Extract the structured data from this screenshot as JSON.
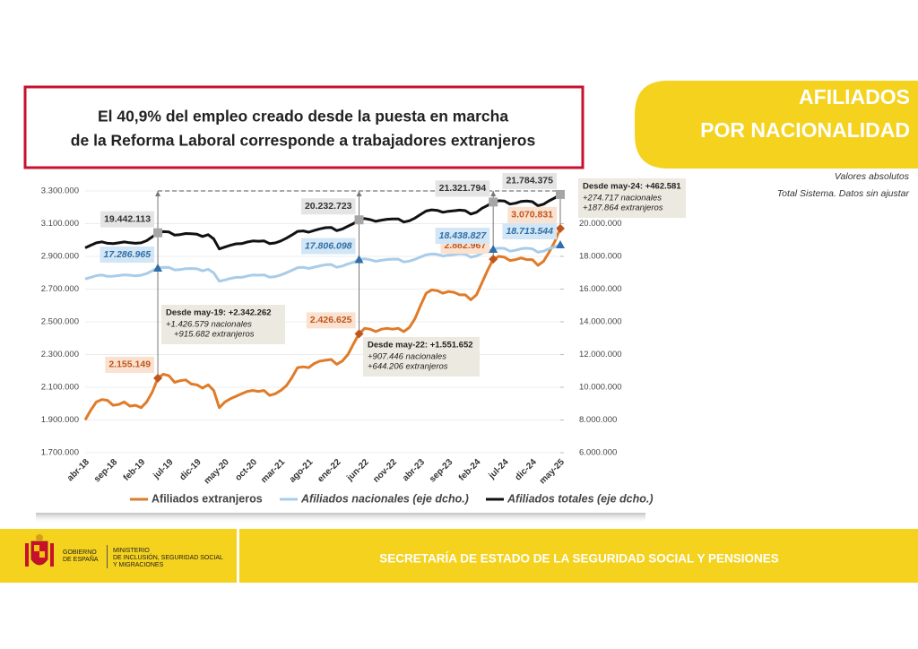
{
  "headline": [
    "El 40,9% del empleo creado desde la puesta en marcha",
    "de la Reforma Laboral corresponde a trabajadores extranjeros"
  ],
  "section_title": [
    "AFILIADOS",
    "POR NACIONALIDAD"
  ],
  "notes": [
    "Valores absolutos",
    "Total Sistema. Datos sin ajustar"
  ],
  "footer": {
    "gobierno": [
      "GOBIERNO",
      "DE ESPAÑA"
    ],
    "ministerio": [
      "MINISTERIO",
      "DE INCLUSIÓN, SEGURIDAD SOCIAL",
      "Y MIGRACIONES"
    ],
    "secretaria": "SECRETARÍA DE ESTADO DE LA SEGURIDAD SOCIAL Y PENSIONES"
  },
  "chart_data": {
    "type": "line",
    "categories": [
      "abr-18",
      null,
      null,
      null,
      null,
      "sep-18",
      null,
      null,
      null,
      null,
      "feb-19",
      null,
      null,
      null,
      null,
      "jul-19",
      null,
      null,
      null,
      null,
      "dic-19",
      null,
      null,
      null,
      null,
      "may-20",
      null,
      null,
      null,
      null,
      "oct-20",
      null,
      null,
      null,
      null,
      "mar-21",
      null,
      null,
      null,
      null,
      "ago-21",
      null,
      null,
      null,
      null,
      "ene-22",
      null,
      null,
      null,
      null,
      "jun-22",
      null,
      null,
      null,
      null,
      "nov-22",
      null,
      null,
      null,
      null,
      "abr-23",
      null,
      null,
      null,
      null,
      "sep-23",
      null,
      null,
      null,
      null,
      "feb-24",
      null,
      null,
      null,
      null,
      "jul-24",
      null,
      null,
      null,
      null,
      "dic-24",
      null,
      null,
      null,
      null,
      "may-25"
    ],
    "ylim": [
      1700000,
      3300000
    ],
    "yticks": [
      {
        "value": 1700000,
        "label": "1.700.000"
      },
      {
        "value": 1900000,
        "label": "1.900.000"
      },
      {
        "value": 2100000,
        "label": "2.100.000"
      },
      {
        "value": 2300000,
        "label": "2.300.000"
      },
      {
        "value": 2500000,
        "label": "2.500.000"
      },
      {
        "value": 2700000,
        "label": "2.700.000"
      },
      {
        "value": 2900000,
        "label": "2.900.000"
      },
      {
        "value": 3100000,
        "label": "3.100.000"
      },
      {
        "value": 3300000,
        "label": "3.300.000"
      }
    ],
    "y2lim": [
      6000000,
      22000000
    ],
    "y2ticks": [
      {
        "value": 6000000,
        "label": "6.000.000"
      },
      {
        "value": 8000000,
        "label": "8.000.000"
      },
      {
        "value": 10000000,
        "label": "10.000.000"
      },
      {
        "value": 12000000,
        "label": "12.000.000"
      },
      {
        "value": 14000000,
        "label": "14.000.000"
      },
      {
        "value": 16000000,
        "label": "16.000.000"
      },
      {
        "value": 18000000,
        "label": "18.000.000"
      },
      {
        "value": 20000000,
        "label": "20.000.000"
      }
    ],
    "grid": true,
    "series": [
      {
        "name": "Afiliados extranjeros",
        "color": "#e07b28",
        "label_fill": "#fbe1cf",
        "label_color": "#c0561c",
        "marker": "diamond",
        "axis": "y",
        "values": [
          1900000,
          1960000,
          2010000,
          2025000,
          2020000,
          1990000,
          1995000,
          2010000,
          1985000,
          1990000,
          1975000,
          2010000,
          2070000,
          2155149,
          2180000,
          2170000,
          2130000,
          2140000,
          2145000,
          2120000,
          2115000,
          2095000,
          2115000,
          2080000,
          1975000,
          2010000,
          2030000,
          2045000,
          2060000,
          2075000,
          2080000,
          2075000,
          2080000,
          2050000,
          2060000,
          2080000,
          2110000,
          2160000,
          2220000,
          2225000,
          2220000,
          2245000,
          2260000,
          2265000,
          2270000,
          2240000,
          2260000,
          2300000,
          2365000,
          2426625,
          2460000,
          2455000,
          2440000,
          2455000,
          2460000,
          2455000,
          2460000,
          2440000,
          2465000,
          2520000,
          2600000,
          2675000,
          2695000,
          2690000,
          2675000,
          2685000,
          2680000,
          2665000,
          2665000,
          2635000,
          2665000,
          2740000,
          2815000,
          2882967,
          2900000,
          2895000,
          2875000,
          2880000,
          2890000,
          2880000,
          2880000,
          2845000,
          2870000,
          2925000,
          2990000,
          3070831
        ],
        "value_labels": [
          null,
          null,
          null,
          null,
          null,
          null,
          null,
          null,
          null,
          null,
          null,
          null,
          null,
          "2.155.149",
          null,
          null,
          null,
          null,
          null,
          null,
          null,
          null,
          null,
          null,
          null,
          null,
          null,
          null,
          null,
          null,
          null,
          null,
          null,
          null,
          null,
          null,
          null,
          null,
          null,
          null,
          null,
          null,
          null,
          null,
          null,
          null,
          null,
          null,
          null,
          "2.426.625",
          null,
          null,
          null,
          null,
          null,
          null,
          null,
          null,
          null,
          null,
          null,
          null,
          null,
          null,
          null,
          null,
          null,
          null,
          null,
          null,
          null,
          null,
          null,
          "2.882.967",
          null,
          null,
          null,
          null,
          null,
          null,
          null,
          null,
          null,
          null,
          null,
          "3.070.831"
        ]
      },
      {
        "name": "Afiliados nacionales (eje dcho.)",
        "color": "#a9cce8",
        "label_fill": "#d2e6f5",
        "label_color": "#2f6ea8",
        "marker": "triangle",
        "axis": "y2",
        "values": [
          16620000,
          16720000,
          16820000,
          16860000,
          16780000,
          16790000,
          16830000,
          16870000,
          16850000,
          16810000,
          16850000,
          16950000,
          17120000,
          17286965,
          17330000,
          17320000,
          17170000,
          17190000,
          17250000,
          17260000,
          17240000,
          17120000,
          17210000,
          16990000,
          16480000,
          16560000,
          16650000,
          16720000,
          16720000,
          16800000,
          16860000,
          16850000,
          16870000,
          16730000,
          16760000,
          16860000,
          17000000,
          17150000,
          17310000,
          17330000,
          17260000,
          17340000,
          17420000,
          17490000,
          17500000,
          17330000,
          17410000,
          17540000,
          17640000,
          17806098,
          17850000,
          17790000,
          17700000,
          17760000,
          17810000,
          17830000,
          17830000,
          17660000,
          17710000,
          17820000,
          17960000,
          18100000,
          18150000,
          18120000,
          18020000,
          18070000,
          18110000,
          18160000,
          18130000,
          17950000,
          18030000,
          18200000,
          18300000,
          18438827,
          18500000,
          18490000,
          18320000,
          18370000,
          18470000,
          18500000,
          18460000,
          18250000,
          18320000,
          18470000,
          18580000,
          18713544
        ],
        "value_labels": [
          null,
          null,
          null,
          null,
          null,
          null,
          null,
          null,
          null,
          null,
          null,
          null,
          null,
          "17.286.965",
          null,
          null,
          null,
          null,
          null,
          null,
          null,
          null,
          null,
          null,
          null,
          null,
          null,
          null,
          null,
          null,
          null,
          null,
          null,
          null,
          null,
          null,
          null,
          null,
          null,
          null,
          null,
          null,
          null,
          null,
          null,
          null,
          null,
          null,
          null,
          "17.806.098",
          null,
          null,
          null,
          null,
          null,
          null,
          null,
          null,
          null,
          null,
          null,
          null,
          null,
          null,
          null,
          null,
          null,
          null,
          null,
          null,
          null,
          null,
          null,
          "18.438.827",
          null,
          null,
          null,
          null,
          null,
          null,
          null,
          null,
          null,
          null,
          null,
          "18.713.544"
        ]
      },
      {
        "name": "Afiliados totales (eje dcho.)",
        "color": "#111111",
        "label_fill": "#e4e4e4",
        "label_color": "#333333",
        "marker": "square",
        "axis": "y2",
        "values": [
          18520000,
          18680000,
          18830000,
          18885000,
          18800000,
          18780000,
          18825000,
          18880000,
          18835000,
          18800000,
          18825000,
          18960000,
          19190000,
          19442113,
          19510000,
          19490000,
          19300000,
          19330000,
          19395000,
          19380000,
          19355000,
          19215000,
          19325000,
          19070000,
          18455000,
          18570000,
          18680000,
          18765000,
          18780000,
          18875000,
          18940000,
          18925000,
          18950000,
          18780000,
          18820000,
          18940000,
          19110000,
          19310000,
          19530000,
          19555000,
          19480000,
          19585000,
          19680000,
          19755000,
          19770000,
          19570000,
          19670000,
          19840000,
          20005000,
          20232723,
          20310000,
          20245000,
          20140000,
          20215000,
          20270000,
          20285000,
          20290000,
          20100000,
          20175000,
          20340000,
          20560000,
          20775000,
          20845000,
          20810000,
          20695000,
          20755000,
          20790000,
          20825000,
          20795000,
          20585000,
          20695000,
          20940000,
          21115000,
          21321794,
          21400000,
          21385000,
          21195000,
          21250000,
          21360000,
          21380000,
          21340000,
          21095000,
          21190000,
          21395000,
          21570000,
          21784375
        ],
        "value_labels": [
          null,
          null,
          null,
          null,
          null,
          null,
          null,
          null,
          null,
          null,
          null,
          null,
          null,
          "19.442.113",
          null,
          null,
          null,
          null,
          null,
          null,
          null,
          null,
          null,
          null,
          null,
          null,
          null,
          null,
          null,
          null,
          null,
          null,
          null,
          null,
          null,
          null,
          null,
          null,
          null,
          null,
          null,
          null,
          null,
          null,
          null,
          null,
          null,
          null,
          null,
          "20.232.723",
          null,
          null,
          null,
          null,
          null,
          null,
          null,
          null,
          null,
          null,
          null,
          null,
          null,
          null,
          null,
          null,
          null,
          null,
          null,
          null,
          null,
          null,
          null,
          "21.321.794",
          null,
          null,
          null,
          null,
          null,
          null,
          null,
          null,
          null,
          null,
          null,
          "21.784.375"
        ]
      }
    ],
    "annotations": [
      {
        "title": "Desde may-19: +2.342.262",
        "lines": [
          "+1.426.579 nacionales",
          "+915.682 extranjeros"
        ]
      },
      {
        "title": "Desde may-22: +1.551.652",
        "lines": [
          "+907.446 nacionales",
          "+644.206 extranjeros"
        ]
      },
      {
        "title": "Desde may-24: +462.581",
        "lines": [
          "+274.717 nacionales",
          "+187.864 extranjeros"
        ]
      }
    ]
  }
}
